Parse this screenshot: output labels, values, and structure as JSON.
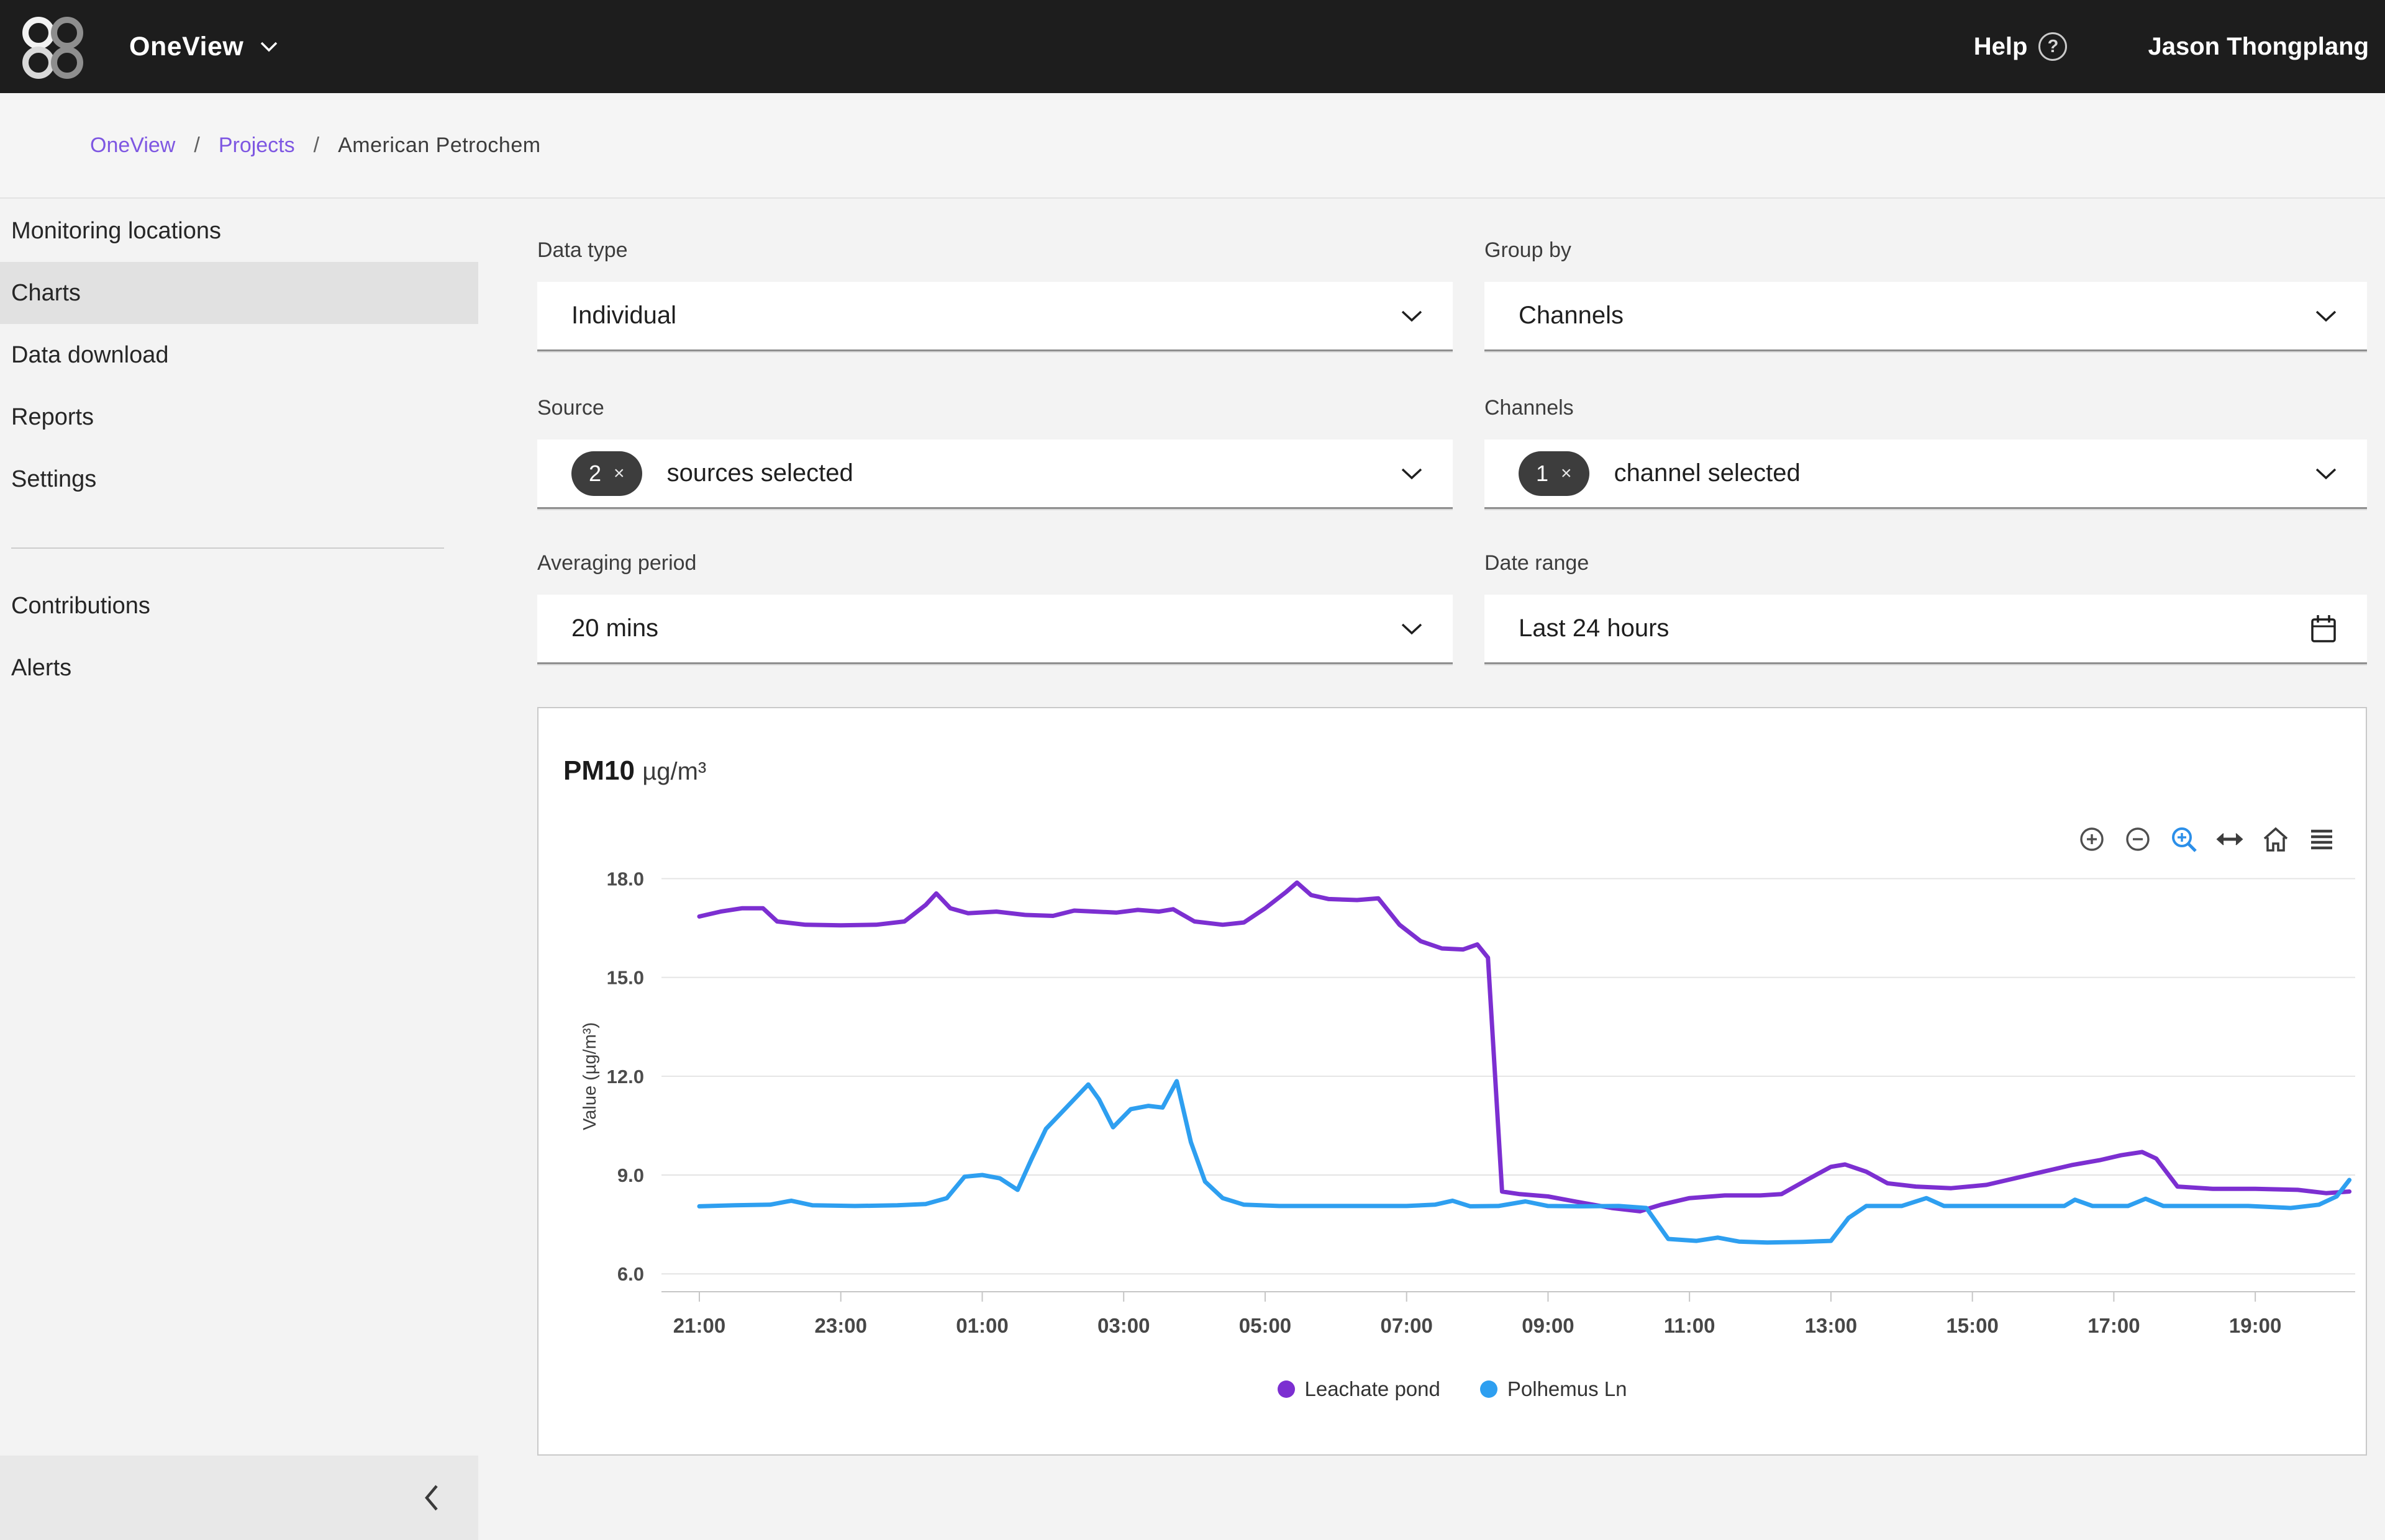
{
  "topnav": {
    "app": "OneView",
    "help": "Help",
    "help_badge": "?",
    "user": "Jason Thongplang"
  },
  "breadcrumb": {
    "separator": "/",
    "link1": "OneView",
    "link2": "Projects",
    "current": "American Petrochem"
  },
  "sidebar": {
    "items": [
      {
        "label": "Monitoring locations",
        "active": false
      },
      {
        "label": "Charts",
        "active": true
      },
      {
        "label": "Data download",
        "active": false
      },
      {
        "label": "Reports",
        "active": false
      },
      {
        "label": "Settings",
        "active": false
      },
      {
        "label": "Contributions",
        "active": false
      },
      {
        "label": "Alerts",
        "active": false
      }
    ],
    "collapse_icon": "chevron-left"
  },
  "filters": {
    "data_type": {
      "label": "Data type",
      "value": "Individual"
    },
    "group_by": {
      "label": "Group by",
      "value": "Channels"
    },
    "source": {
      "label": "Source",
      "chip_count": "2",
      "chip_close": "×",
      "value": "sources selected"
    },
    "channels": {
      "label": "Channels",
      "chip_count": "1",
      "chip_close": "×",
      "value": "channel selected"
    },
    "averaging_period": {
      "label": "Averaging period",
      "value": "20 mins"
    },
    "date_range": {
      "label": "Date range",
      "value": "Last 24 hours"
    }
  },
  "chart": {
    "title": "PM10",
    "unit": "µg/m³",
    "toolbar_icons": [
      "zoom-in-icon",
      "zoom-out-icon",
      "box-zoom-icon",
      "pan-icon",
      "home-icon",
      "menu-icon"
    ]
  },
  "chart_data": {
    "type": "line",
    "title": "PM10 µg/m³",
    "ylabel": "Value (µg/m³)",
    "grid": "horizontal",
    "legend_position": "bottom",
    "ylim": [
      5.3,
      18.5
    ],
    "yticks": [
      6.0,
      9.0,
      12.0,
      15.0,
      18.0
    ],
    "ytick_labels": [
      "6.0",
      "9.0",
      "12.0",
      "15.0",
      "18.0"
    ],
    "x_unit": "hours after 21:00",
    "xlim": [
      -0.55,
      23.45
    ],
    "xticks": [
      {
        "t": 0,
        "label": "21:00"
      },
      {
        "t": 2,
        "label": "23:00"
      },
      {
        "t": 4,
        "label": "01:00"
      },
      {
        "t": 6,
        "label": "03:00"
      },
      {
        "t": 8,
        "label": "05:00"
      },
      {
        "t": 10,
        "label": "07:00"
      },
      {
        "t": 12,
        "label": "09:00"
      },
      {
        "t": 14,
        "label": "11:00"
      },
      {
        "t": 16,
        "label": "13:00"
      },
      {
        "t": 18,
        "label": "15:00"
      },
      {
        "t": 20,
        "label": "17:00"
      },
      {
        "t": 22,
        "label": "19:00"
      }
    ],
    "series": [
      {
        "name": "Leachate pond",
        "color": "#7c2fd1",
        "points": [
          [
            0,
            16.85
          ],
          [
            0.3,
            17
          ],
          [
            0.6,
            17.1
          ],
          [
            0.9,
            17.1
          ],
          [
            1.1,
            16.7
          ],
          [
            1.5,
            16.6
          ],
          [
            2,
            16.58
          ],
          [
            2.5,
            16.6
          ],
          [
            2.9,
            16.7
          ],
          [
            3.2,
            17.2
          ],
          [
            3.35,
            17.55
          ],
          [
            3.55,
            17.1
          ],
          [
            3.8,
            16.95
          ],
          [
            4.2,
            17
          ],
          [
            4.6,
            16.9
          ],
          [
            5,
            16.87
          ],
          [
            5.3,
            17.03
          ],
          [
            5.6,
            17
          ],
          [
            5.9,
            16.97
          ],
          [
            6.2,
            17.05
          ],
          [
            6.5,
            17
          ],
          [
            6.7,
            17.07
          ],
          [
            7,
            16.7
          ],
          [
            7.4,
            16.6
          ],
          [
            7.7,
            16.67
          ],
          [
            8,
            17.1
          ],
          [
            8.3,
            17.6
          ],
          [
            8.45,
            17.88
          ],
          [
            8.65,
            17.5
          ],
          [
            8.9,
            17.38
          ],
          [
            9.3,
            17.35
          ],
          [
            9.6,
            17.4
          ],
          [
            9.9,
            16.6
          ],
          [
            10.2,
            16.1
          ],
          [
            10.5,
            15.88
          ],
          [
            10.8,
            15.85
          ],
          [
            11,
            16
          ],
          [
            11.15,
            15.6
          ],
          [
            11.35,
            8.5
          ],
          [
            11.6,
            8.42
          ],
          [
            12,
            8.35
          ],
          [
            12.5,
            8.15
          ],
          [
            12.9,
            8
          ],
          [
            13.3,
            7.9
          ],
          [
            13.6,
            8.1
          ],
          [
            14,
            8.3
          ],
          [
            14.5,
            8.38
          ],
          [
            15,
            8.38
          ],
          [
            15.3,
            8.42
          ],
          [
            15.7,
            8.9
          ],
          [
            16,
            9.25
          ],
          [
            16.2,
            9.32
          ],
          [
            16.5,
            9.1
          ],
          [
            16.8,
            8.75
          ],
          [
            17.2,
            8.65
          ],
          [
            17.7,
            8.6
          ],
          [
            18.2,
            8.7
          ],
          [
            18.6,
            8.9
          ],
          [
            19,
            9.1
          ],
          [
            19.4,
            9.3
          ],
          [
            19.8,
            9.45
          ],
          [
            20.1,
            9.6
          ],
          [
            20.4,
            9.7
          ],
          [
            20.6,
            9.5
          ],
          [
            20.9,
            8.65
          ],
          [
            21.4,
            8.58
          ],
          [
            22,
            8.58
          ],
          [
            22.6,
            8.55
          ],
          [
            23,
            8.45
          ],
          [
            23.33,
            8.5
          ]
        ]
      },
      {
        "name": "Polhemus Ln",
        "color": "#2e9ff0",
        "points": [
          [
            0,
            8.05
          ],
          [
            0.5,
            8.08
          ],
          [
            1,
            8.1
          ],
          [
            1.3,
            8.22
          ],
          [
            1.6,
            8.08
          ],
          [
            2.2,
            8.06
          ],
          [
            2.8,
            8.08
          ],
          [
            3.2,
            8.12
          ],
          [
            3.5,
            8.3
          ],
          [
            3.75,
            8.95
          ],
          [
            4,
            9
          ],
          [
            4.25,
            8.9
          ],
          [
            4.5,
            8.55
          ],
          [
            4.7,
            9.5
          ],
          [
            4.9,
            10.4
          ],
          [
            5.1,
            10.85
          ],
          [
            5.3,
            11.3
          ],
          [
            5.5,
            11.75
          ],
          [
            5.65,
            11.3
          ],
          [
            5.85,
            10.45
          ],
          [
            6.1,
            11
          ],
          [
            6.35,
            11.1
          ],
          [
            6.55,
            11.05
          ],
          [
            6.75,
            11.85
          ],
          [
            6.95,
            10
          ],
          [
            7.15,
            8.8
          ],
          [
            7.4,
            8.3
          ],
          [
            7.7,
            8.1
          ],
          [
            8.2,
            8.06
          ],
          [
            8.8,
            8.06
          ],
          [
            9.4,
            8.06
          ],
          [
            10,
            8.06
          ],
          [
            10.4,
            8.1
          ],
          [
            10.65,
            8.22
          ],
          [
            10.9,
            8.05
          ],
          [
            11.3,
            8.06
          ],
          [
            11.68,
            8.2
          ],
          [
            12,
            8.06
          ],
          [
            12.5,
            8.05
          ],
          [
            13,
            8.06
          ],
          [
            13.39,
            8
          ],
          [
            13.7,
            7.06
          ],
          [
            14.1,
            7
          ],
          [
            14.4,
            7.1
          ],
          [
            14.7,
            6.98
          ],
          [
            15.1,
            6.95
          ],
          [
            15.6,
            6.97
          ],
          [
            16,
            7
          ],
          [
            16.25,
            7.7
          ],
          [
            16.5,
            8.06
          ],
          [
            17,
            8.06
          ],
          [
            17.35,
            8.3
          ],
          [
            17.6,
            8.06
          ],
          [
            18.1,
            8.06
          ],
          [
            18.7,
            8.06
          ],
          [
            19.3,
            8.06
          ],
          [
            19.45,
            8.25
          ],
          [
            19.7,
            8.06
          ],
          [
            20.2,
            8.06
          ],
          [
            20.45,
            8.28
          ],
          [
            20.7,
            8.06
          ],
          [
            21.3,
            8.06
          ],
          [
            21.9,
            8.06
          ],
          [
            22.5,
            8
          ],
          [
            22.9,
            8.1
          ],
          [
            23.15,
            8.35
          ],
          [
            23.33,
            8.85
          ]
        ]
      }
    ]
  }
}
